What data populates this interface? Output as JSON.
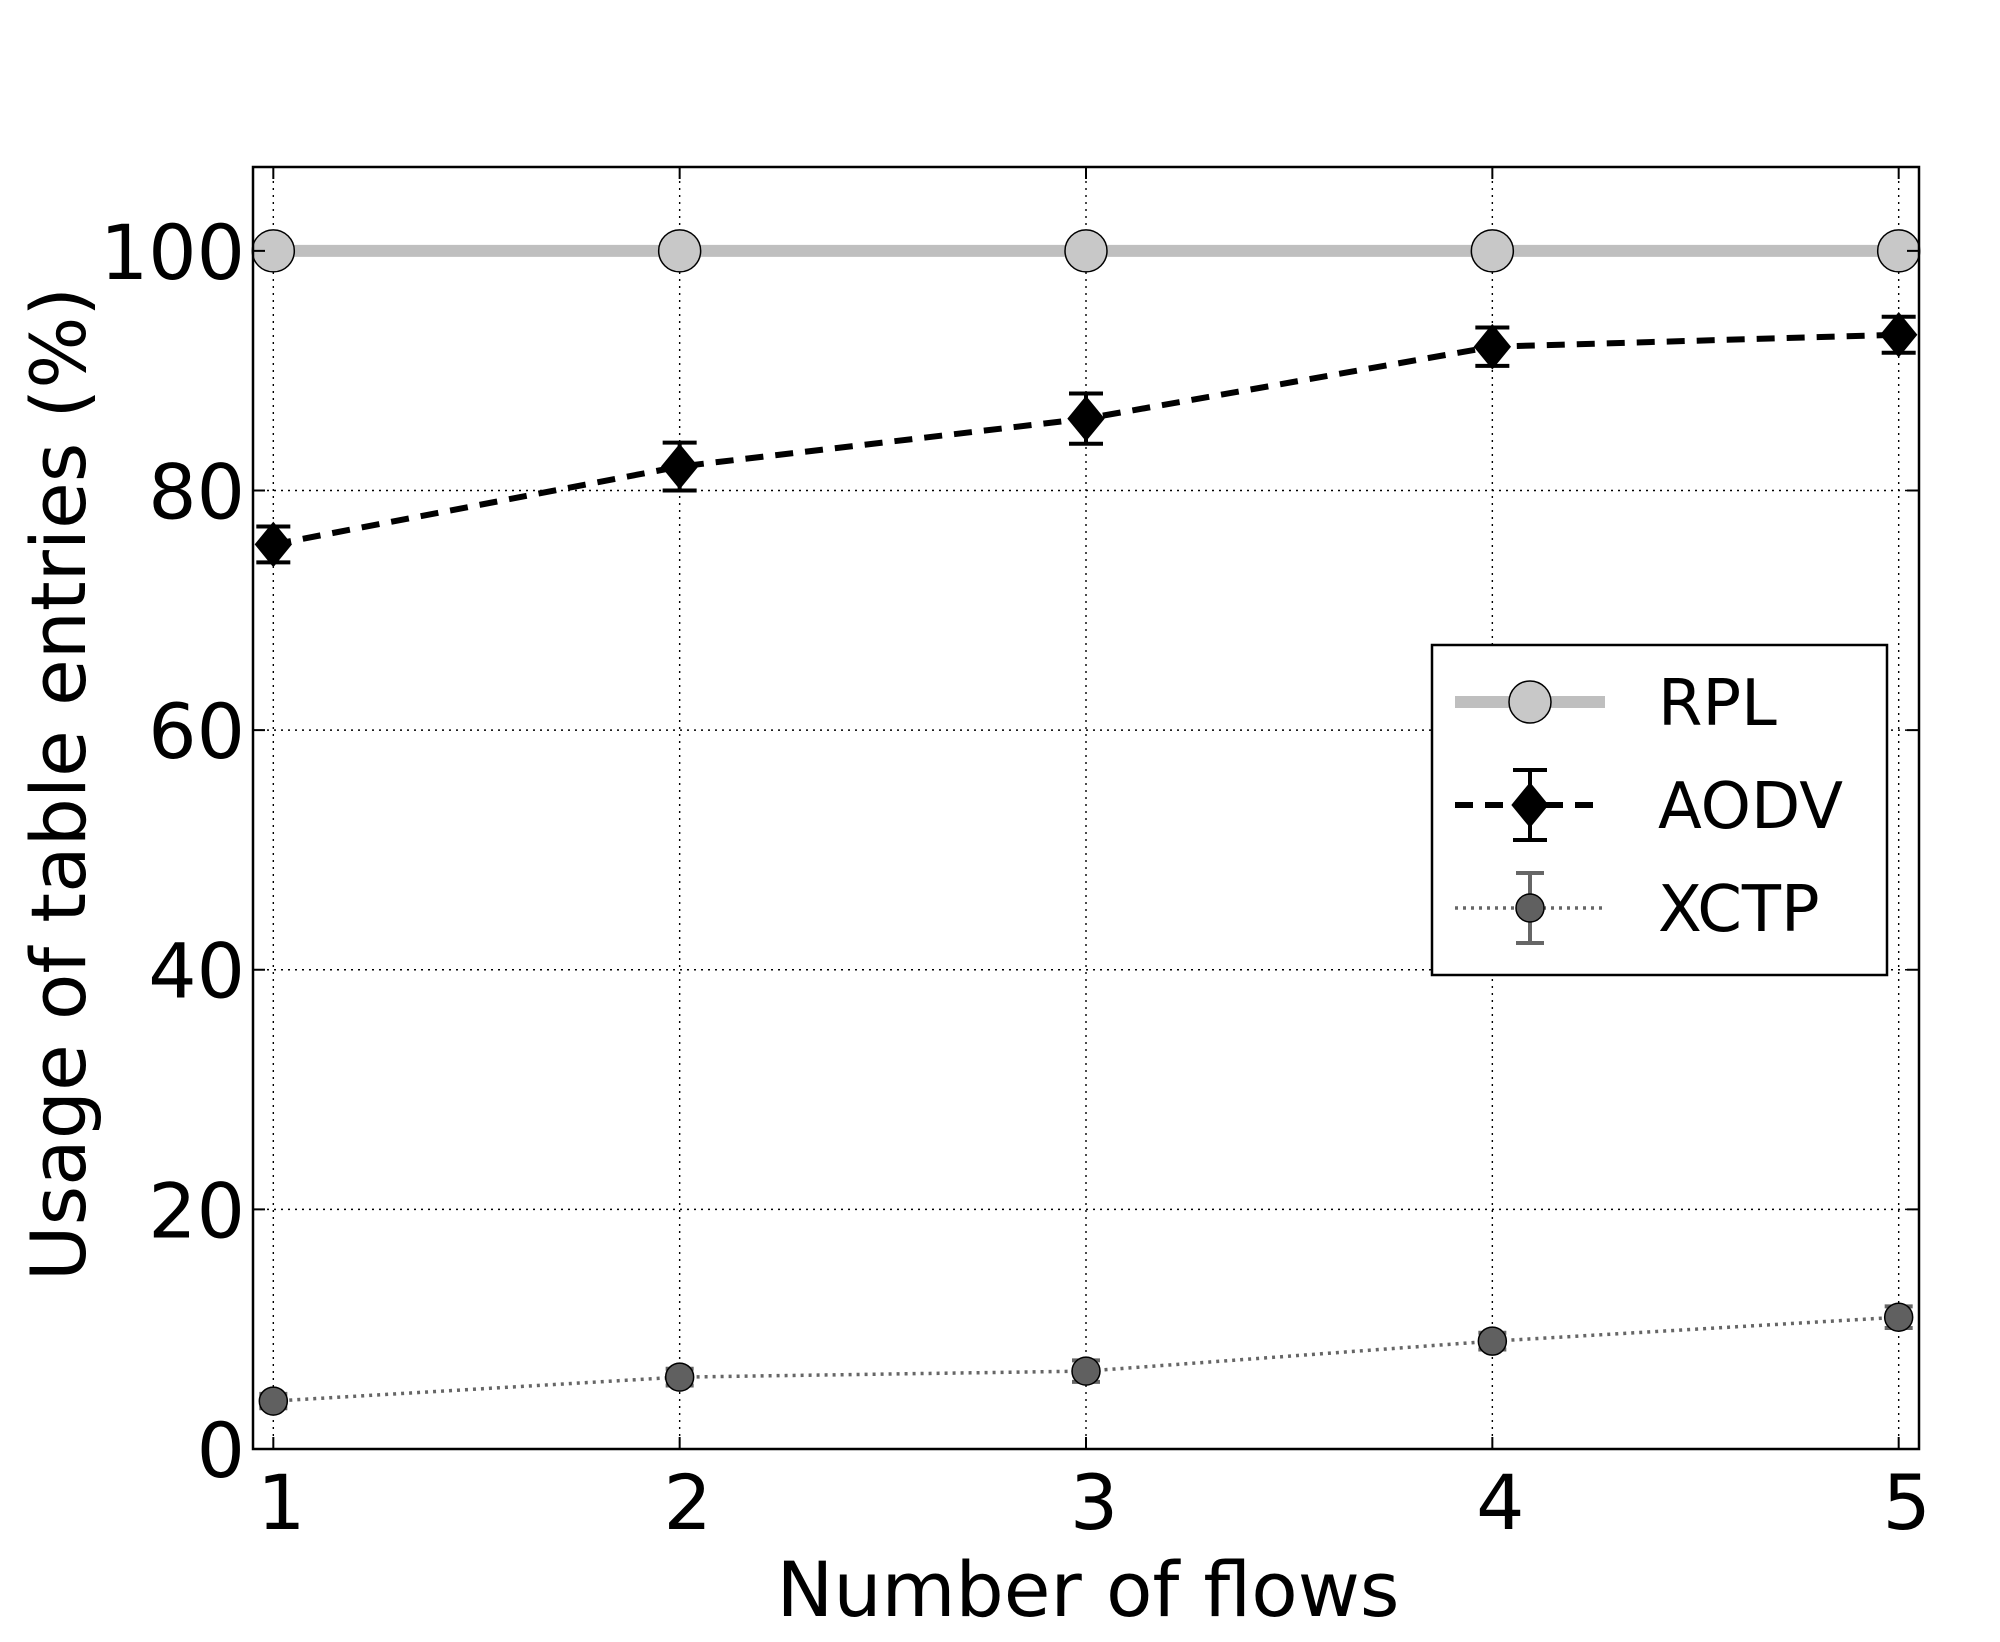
{
  "chart_data": {
    "type": "line",
    "title": "",
    "xlabel": "Number of flows",
    "ylabel": "Usage of table entries (%)",
    "xlim": [
      0.95,
      5.05
    ],
    "ylim": [
      0,
      107
    ],
    "xticks": [
      1,
      2,
      3,
      4,
      5
    ],
    "yticks": [
      0,
      20,
      40,
      60,
      80,
      100
    ],
    "grid": true,
    "legend_position": "center-right",
    "x": [
      1,
      2,
      3,
      4,
      5
    ],
    "series": [
      {
        "name": "RPL",
        "values": [
          100,
          100,
          100,
          100,
          100
        ],
        "errors": [
          0,
          0,
          0,
          0,
          0
        ],
        "line_style": "solid",
        "marker": "circle",
        "color": "#bfbfbf",
        "marker_color": "#c8c8c8"
      },
      {
        "name": "AODV",
        "values": [
          75.5,
          82,
          86,
          92,
          93
        ],
        "errors": [
          1.5,
          2,
          2.1,
          1.6,
          1.5
        ],
        "line_style": "dashed",
        "marker": "diamond",
        "color": "#000000",
        "marker_color": "#000000"
      },
      {
        "name": "XCTP",
        "values": [
          4,
          6,
          6.5,
          9,
          11
        ],
        "errors": [
          0.6,
          0.7,
          0.9,
          0.7,
          0.9
        ],
        "line_style": "dotted",
        "marker": "circle",
        "color": "#666666",
        "marker_color": "#606060"
      }
    ]
  }
}
